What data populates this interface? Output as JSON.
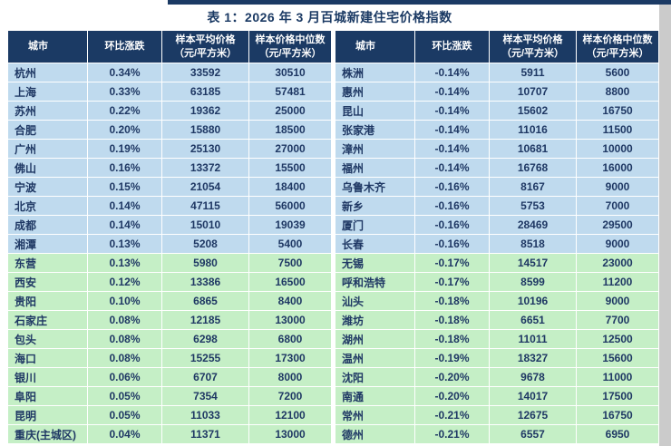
{
  "title": "表 1：2026 年 3 月百城新建住宅价格指数",
  "columns": {
    "city": "城市",
    "change": "环比涨跌",
    "avg_line1": "样本平均价格",
    "avg_line2": "（元/平方米）",
    "median_line1": "样本价格中位数",
    "median_line2": "（元/平方米）"
  },
  "colors": {
    "header_bg": "#1B3A64",
    "row_blue": "#BFDAEE",
    "row_green": "#C5EFC6",
    "text_navy": "#1F3864"
  },
  "left_table": {
    "rows": [
      {
        "city": "杭州",
        "change": "0.34%",
        "avg": "33592",
        "median": "30510",
        "group": "blue"
      },
      {
        "city": "上海",
        "change": "0.33%",
        "avg": "63185",
        "median": "57481",
        "group": "blue"
      },
      {
        "city": "苏州",
        "change": "0.22%",
        "avg": "19362",
        "median": "25000",
        "group": "blue"
      },
      {
        "city": "合肥",
        "change": "0.20%",
        "avg": "15880",
        "median": "18500",
        "group": "blue"
      },
      {
        "city": "广州",
        "change": "0.19%",
        "avg": "25130",
        "median": "27000",
        "group": "blue"
      },
      {
        "city": "佛山",
        "change": "0.16%",
        "avg": "13372",
        "median": "15500",
        "group": "blue"
      },
      {
        "city": "宁波",
        "change": "0.15%",
        "avg": "21054",
        "median": "18400",
        "group": "blue"
      },
      {
        "city": "北京",
        "change": "0.14%",
        "avg": "47115",
        "median": "56000",
        "group": "blue"
      },
      {
        "city": "成都",
        "change": "0.14%",
        "avg": "15010",
        "median": "19039",
        "group": "blue"
      },
      {
        "city": "湘潭",
        "change": "0.13%",
        "avg": "5208",
        "median": "5400",
        "group": "blue"
      },
      {
        "city": "东营",
        "change": "0.13%",
        "avg": "5980",
        "median": "7500",
        "group": "green"
      },
      {
        "city": "西安",
        "change": "0.12%",
        "avg": "13386",
        "median": "16500",
        "group": "green"
      },
      {
        "city": "贵阳",
        "change": "0.10%",
        "avg": "6865",
        "median": "8400",
        "group": "green"
      },
      {
        "city": "石家庄",
        "change": "0.08%",
        "avg": "12185",
        "median": "13000",
        "group": "green"
      },
      {
        "city": "包头",
        "change": "0.08%",
        "avg": "6298",
        "median": "6800",
        "group": "green"
      },
      {
        "city": "海口",
        "change": "0.08%",
        "avg": "15255",
        "median": "17300",
        "group": "green"
      },
      {
        "city": "银川",
        "change": "0.06%",
        "avg": "6707",
        "median": "8000",
        "group": "green"
      },
      {
        "city": "阜阳",
        "change": "0.05%",
        "avg": "7354",
        "median": "7200",
        "group": "green"
      },
      {
        "city": "昆明",
        "change": "0.05%",
        "avg": "11033",
        "median": "12100",
        "group": "green"
      },
      {
        "city": "重庆(主城区)",
        "change": "0.04%",
        "avg": "11371",
        "median": "13000",
        "group": "green"
      }
    ]
  },
  "right_table": {
    "rows": [
      {
        "city": "株洲",
        "change": "-0.14%",
        "avg": "5911",
        "median": "5600",
        "group": "blue"
      },
      {
        "city": "惠州",
        "change": "-0.14%",
        "avg": "10707",
        "median": "8800",
        "group": "blue"
      },
      {
        "city": "昆山",
        "change": "-0.14%",
        "avg": "15602",
        "median": "16750",
        "group": "blue"
      },
      {
        "city": "张家港",
        "change": "-0.14%",
        "avg": "11016",
        "median": "11500",
        "group": "blue"
      },
      {
        "city": "漳州",
        "change": "-0.14%",
        "avg": "10681",
        "median": "10000",
        "group": "blue"
      },
      {
        "city": "福州",
        "change": "-0.14%",
        "avg": "16768",
        "median": "16000",
        "group": "blue"
      },
      {
        "city": "乌鲁木齐",
        "change": "-0.16%",
        "avg": "8167",
        "median": "9000",
        "group": "blue"
      },
      {
        "city": "新乡",
        "change": "-0.16%",
        "avg": "5753",
        "median": "7000",
        "group": "blue"
      },
      {
        "city": "厦门",
        "change": "-0.16%",
        "avg": "28469",
        "median": "29500",
        "group": "blue"
      },
      {
        "city": "长春",
        "change": "-0.16%",
        "avg": "8518",
        "median": "9000",
        "group": "blue"
      },
      {
        "city": "无锡",
        "change": "-0.17%",
        "avg": "14517",
        "median": "23000",
        "group": "green"
      },
      {
        "city": "呼和浩特",
        "change": "-0.17%",
        "avg": "8599",
        "median": "11200",
        "group": "green"
      },
      {
        "city": "汕头",
        "change": "-0.18%",
        "avg": "10196",
        "median": "9000",
        "group": "green"
      },
      {
        "city": "潍坊",
        "change": "-0.18%",
        "avg": "6651",
        "median": "7700",
        "group": "green"
      },
      {
        "city": "湖州",
        "change": "-0.18%",
        "avg": "11011",
        "median": "12500",
        "group": "green"
      },
      {
        "city": "温州",
        "change": "-0.19%",
        "avg": "18327",
        "median": "15600",
        "group": "green"
      },
      {
        "city": "沈阳",
        "change": "-0.20%",
        "avg": "9678",
        "median": "11000",
        "group": "green"
      },
      {
        "city": "南通",
        "change": "-0.20%",
        "avg": "14017",
        "median": "17500",
        "group": "green"
      },
      {
        "city": "常州",
        "change": "-0.21%",
        "avg": "12675",
        "median": "16750",
        "group": "green"
      },
      {
        "city": "德州",
        "change": "-0.21%",
        "avg": "6557",
        "median": "6950",
        "group": "green"
      }
    ]
  }
}
